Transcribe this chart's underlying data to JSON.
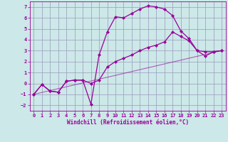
{
  "xlabel": "Windchill (Refroidissement éolien,°C)",
  "bg_color": "#cce8e8",
  "grid_color": "#9999bb",
  "line_color": "#990099",
  "line1_x": [
    0,
    1,
    2,
    3,
    4,
    5,
    6,
    7,
    8,
    9,
    10,
    11,
    12,
    13,
    14,
    15,
    16,
    17,
    18,
    19,
    20,
    21,
    22,
    23
  ],
  "line1_y": [
    -1.0,
    -0.1,
    -0.7,
    -0.8,
    0.2,
    0.3,
    0.3,
    -1.9,
    2.6,
    4.7,
    6.1,
    6.0,
    6.4,
    6.8,
    7.1,
    7.0,
    6.8,
    6.2,
    4.8,
    4.1,
    3.0,
    2.9,
    2.9,
    3.0
  ],
  "line2_x": [
    0,
    1,
    2,
    3,
    4,
    5,
    6,
    7,
    8,
    9,
    10,
    11,
    12,
    13,
    14,
    15,
    16,
    17,
    18,
    19,
    20,
    21,
    22,
    23
  ],
  "line2_y": [
    -1.0,
    -0.1,
    -0.7,
    -0.8,
    0.2,
    0.3,
    0.3,
    0.0,
    0.3,
    1.5,
    2.0,
    2.3,
    2.6,
    3.0,
    3.3,
    3.5,
    3.8,
    4.7,
    4.3,
    3.9,
    3.0,
    2.5,
    2.9,
    3.0
  ],
  "line3_x": [
    0,
    23
  ],
  "line3_y": [
    -1.0,
    3.0
  ],
  "ylim": [
    -2.5,
    7.5
  ],
  "xlim": [
    -0.5,
    23.5
  ],
  "yticks": [
    -2,
    -1,
    0,
    1,
    2,
    3,
    4,
    5,
    6,
    7
  ],
  "xticks": [
    0,
    1,
    2,
    3,
    4,
    5,
    6,
    7,
    8,
    9,
    10,
    11,
    12,
    13,
    14,
    15,
    16,
    17,
    18,
    19,
    20,
    21,
    22,
    23
  ],
  "tick_fontsize": 5.0,
  "xlabel_fontsize": 5.5
}
